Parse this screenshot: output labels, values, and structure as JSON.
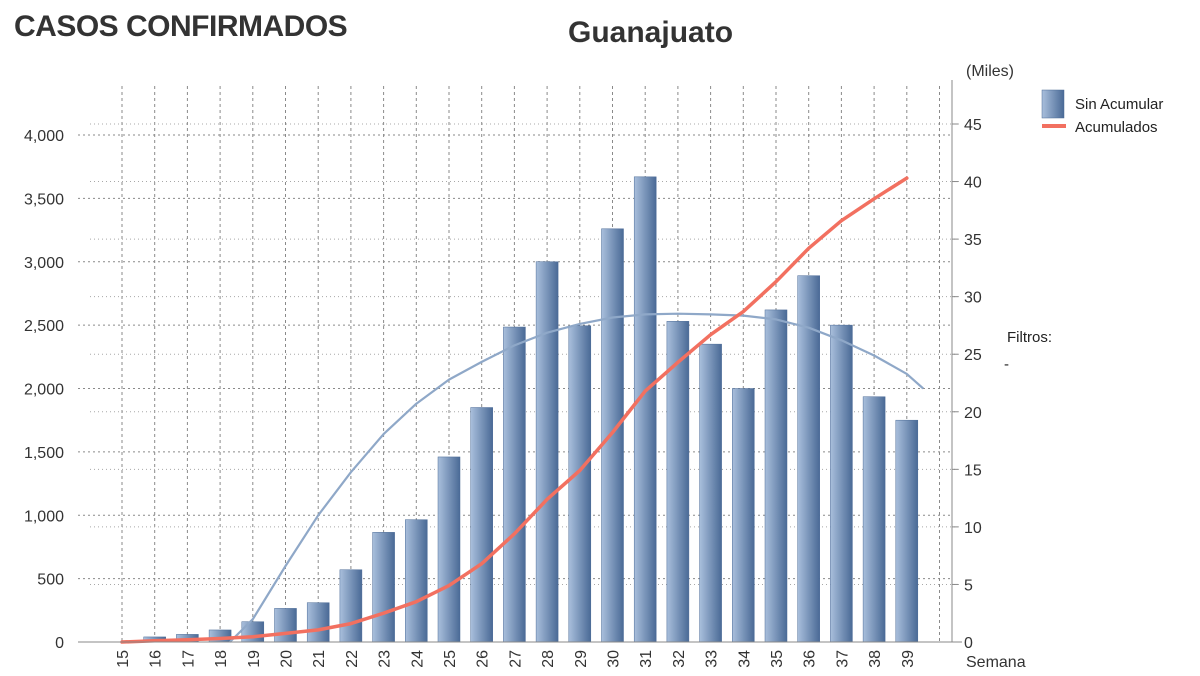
{
  "page": {
    "main_title": "CASOS CONFIRMADOS",
    "filters_label": "Filtros:",
    "filters_value": "-"
  },
  "chart_data": {
    "type": "bar",
    "title": "Guanajuato",
    "xlabel": "Semana",
    "y2_unit": "(Miles)",
    "categories": [
      "15",
      "16",
      "17",
      "18",
      "19",
      "20",
      "21",
      "22",
      "23",
      "24",
      "25",
      "26",
      "27",
      "28",
      "29",
      "30",
      "31",
      "32",
      "33",
      "34",
      "35",
      "36",
      "37",
      "38",
      "39"
    ],
    "series": [
      {
        "name": "Sin Acumular",
        "type": "bar",
        "axis": "left",
        "color": "#5f7fa6",
        "values": [
          0,
          40,
          60,
          95,
          160,
          265,
          310,
          570,
          865,
          965,
          1460,
          1850,
          2485,
          3000,
          2495,
          3260,
          3670,
          2530,
          2350,
          2000,
          2620,
          2890,
          2500,
          1935,
          1750
        ]
      },
      {
        "name": "Acumulados",
        "type": "line",
        "axis": "right",
        "color": "#f27060",
        "values": [
          0.0,
          0.1,
          0.2,
          0.3,
          0.45,
          0.75,
          1.05,
          1.6,
          2.5,
          3.5,
          4.9,
          6.8,
          9.4,
          12.4,
          14.9,
          18.2,
          21.8,
          24.3,
          26.7,
          28.7,
          31.3,
          34.2,
          36.6,
          38.5,
          40.3
        ]
      }
    ],
    "trendline": {
      "color": "#8fa8c8",
      "x": [
        18.3,
        19,
        20,
        21,
        22,
        23,
        24,
        25,
        26,
        27,
        28,
        29,
        30,
        31,
        32,
        33,
        34,
        35,
        36,
        37,
        38,
        39,
        39.5
      ],
      "values": [
        0,
        180,
        600,
        1000,
        1340,
        1640,
        1880,
        2070,
        2210,
        2340,
        2440,
        2510,
        2560,
        2585,
        2590,
        2585,
        2575,
        2545,
        2480,
        2380,
        2260,
        2115,
        2000
      ]
    },
    "y_left": {
      "ylim": [
        0,
        4000
      ],
      "ticks": [
        "0",
        "500",
        "1,000",
        "1,500",
        "2,000",
        "2,500",
        "3,000",
        "3,500",
        "4,000"
      ]
    },
    "y_right": {
      "ylim": [
        0,
        45
      ],
      "ticks": [
        "0",
        "5",
        "10",
        "15",
        "20",
        "25",
        "30",
        "35",
        "40",
        "45"
      ]
    },
    "grid": true,
    "legend_position": "top-right"
  }
}
